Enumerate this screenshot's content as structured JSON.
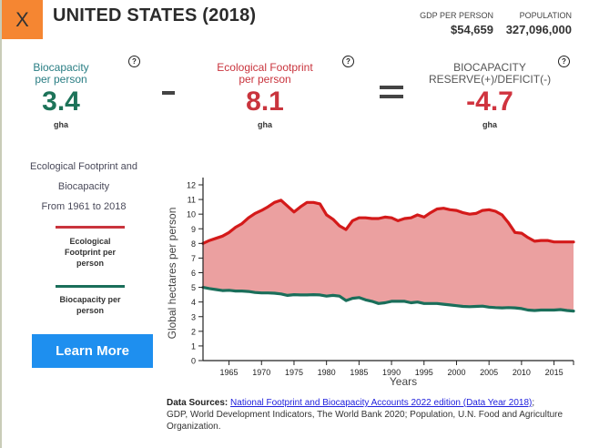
{
  "header": {
    "close_label": "X",
    "title": "UNITED STATES (2018)",
    "gdp_label": "GDP PER PERSON",
    "gdp_value": "$54,659",
    "population_label": "POPULATION",
    "population_value": "327,096,000"
  },
  "metrics": {
    "biocapacity": {
      "label_line1": "Biocapacity",
      "label_line2": "per person",
      "value": "3.4",
      "unit": "gha"
    },
    "footprint": {
      "label_line1": "Ecological Footprint",
      "label_line2": "per person",
      "value": "8.1",
      "unit": "gha"
    },
    "reserve": {
      "label_line1": "BIOCAPACITY",
      "label_line2": "RESERVE(+)/DEFICIT(-)",
      "value": "-4.7",
      "unit": "gha"
    },
    "help_glyph": "?",
    "operator_minus": "minus",
    "operator_equals": "equals"
  },
  "sidebar": {
    "title_line1": "Ecological Footprint and",
    "title_line2": "Biocapacity",
    "title_line3": "From 1961 to 2018",
    "legend": [
      {
        "label_line1": "Ecological",
        "label_line2": "Footprint per",
        "label_line3": "person",
        "color": "#c9343d"
      },
      {
        "label_line1": "Biocapacity per",
        "label_line2": "person",
        "color": "#1a6e5a"
      }
    ],
    "learn_more": "Learn More"
  },
  "chart_data": {
    "type": "area",
    "title": "Ecological Footprint and Biocapacity From 1961 to 2018",
    "xlabel": "Years",
    "ylabel": "Global hectares per person",
    "xlim": [
      1961,
      2018
    ],
    "ylim": [
      0,
      12
    ],
    "x_ticks": [
      1965,
      1970,
      1975,
      1980,
      1985,
      1990,
      1995,
      2000,
      2005,
      2010,
      2015
    ],
    "y_ticks": [
      0,
      1,
      2,
      3,
      4,
      5,
      6,
      7,
      8,
      9,
      10,
      11,
      12
    ],
    "grid": false,
    "fill_between_color": "#eba0a0",
    "series": [
      {
        "name": "Ecological Footprint per person",
        "color": "#d41a1a",
        "x": [
          1961,
          1962,
          1963,
          1964,
          1965,
          1966,
          1967,
          1968,
          1969,
          1970,
          1971,
          1972,
          1973,
          1974,
          1975,
          1976,
          1977,
          1978,
          1979,
          1980,
          1981,
          1982,
          1983,
          1984,
          1985,
          1986,
          1987,
          1988,
          1989,
          1990,
          1991,
          1992,
          1993,
          1994,
          1995,
          1996,
          1997,
          1998,
          1999,
          2000,
          2001,
          2002,
          2003,
          2004,
          2005,
          2006,
          2007,
          2008,
          2009,
          2010,
          2011,
          2012,
          2013,
          2014,
          2015,
          2016,
          2017,
          2018
        ],
        "values": [
          8.0,
          8.2,
          8.35,
          8.5,
          8.75,
          9.1,
          9.35,
          9.75,
          10.05,
          10.25,
          10.5,
          10.8,
          10.95,
          10.55,
          10.15,
          10.5,
          10.8,
          10.8,
          10.7,
          9.95,
          9.65,
          9.2,
          8.95,
          9.55,
          9.75,
          9.75,
          9.7,
          9.7,
          9.8,
          9.75,
          9.55,
          9.7,
          9.75,
          9.95,
          9.8,
          10.1,
          10.35,
          10.4,
          10.3,
          10.25,
          10.1,
          10.0,
          10.05,
          10.25,
          10.3,
          10.2,
          9.95,
          9.4,
          8.75,
          8.7,
          8.4,
          8.15,
          8.2,
          8.2,
          8.1,
          8.1,
          8.1,
          8.1
        ]
      },
      {
        "name": "Biocapacity per person",
        "color": "#1a6e5a",
        "x": [
          1961,
          1962,
          1963,
          1964,
          1965,
          1966,
          1967,
          1968,
          1969,
          1970,
          1971,
          1972,
          1973,
          1974,
          1975,
          1976,
          1977,
          1978,
          1979,
          1980,
          1981,
          1982,
          1983,
          1984,
          1985,
          1986,
          1987,
          1988,
          1989,
          1990,
          1991,
          1992,
          1993,
          1994,
          1995,
          1996,
          1997,
          1998,
          1999,
          2000,
          2001,
          2002,
          2003,
          2004,
          2005,
          2006,
          2007,
          2008,
          2009,
          2010,
          2011,
          2012,
          2013,
          2014,
          2015,
          2016,
          2017,
          2018
        ],
        "values": [
          5.0,
          4.92,
          4.85,
          4.78,
          4.8,
          4.75,
          4.75,
          4.72,
          4.65,
          4.62,
          4.62,
          4.6,
          4.55,
          4.45,
          4.5,
          4.48,
          4.48,
          4.5,
          4.48,
          4.4,
          4.45,
          4.4,
          4.1,
          4.25,
          4.3,
          4.15,
          4.05,
          3.9,
          3.95,
          4.05,
          4.05,
          4.05,
          3.95,
          4.0,
          3.9,
          3.9,
          3.9,
          3.85,
          3.8,
          3.75,
          3.7,
          3.68,
          3.7,
          3.72,
          3.65,
          3.62,
          3.6,
          3.62,
          3.6,
          3.55,
          3.45,
          3.42,
          3.45,
          3.45,
          3.45,
          3.48,
          3.42,
          3.38
        ]
      }
    ]
  },
  "sources": {
    "label": "Data Sources:",
    "link_text": "National Footprint and Biocapacity Accounts 2022 edition (Data Year 2018)",
    "after_link": ";",
    "rest": "GDP, World Development Indicators, The World Bank 2020; Population, U.N. Food and Agriculture Organization."
  }
}
